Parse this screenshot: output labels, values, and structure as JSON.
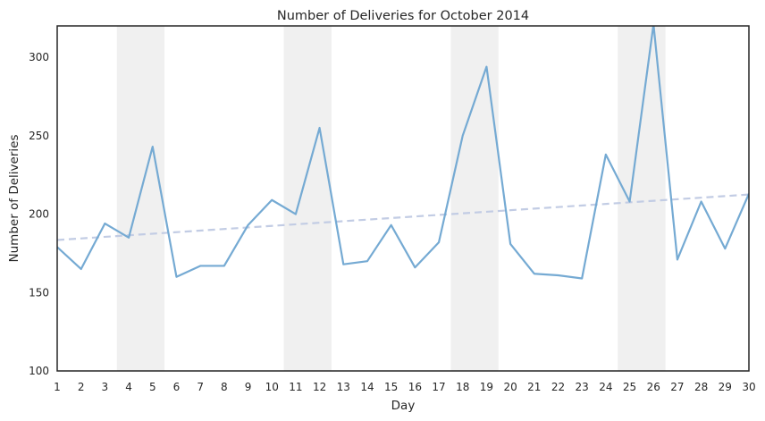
{
  "chart_data": {
    "type": "line",
    "title": "Number of Deliveries for October 2014",
    "xlabel": "Day",
    "ylabel": "Number of Deliveries",
    "xlim": [
      1,
      30
    ],
    "ylim": [
      100,
      320
    ],
    "x_ticks": [
      1,
      2,
      3,
      4,
      5,
      6,
      7,
      8,
      9,
      10,
      11,
      12,
      13,
      14,
      15,
      16,
      17,
      18,
      19,
      20,
      21,
      22,
      23,
      24,
      25,
      26,
      27,
      28,
      29,
      30
    ],
    "y_ticks": [
      100,
      150,
      200,
      250,
      300
    ],
    "grid": false,
    "weekend_shading": [
      [
        3.5,
        5.5
      ],
      [
        10.5,
        12.5
      ],
      [
        17.5,
        19.5
      ],
      [
        24.5,
        26.5
      ]
    ],
    "series": [
      {
        "style": "solid",
        "color": "#75aad3",
        "x": [
          1,
          2,
          3,
          4,
          5,
          6,
          7,
          8,
          9,
          10,
          11,
          12,
          13,
          14,
          15,
          16,
          17,
          18,
          19,
          20,
          21,
          22,
          23,
          24,
          25,
          26,
          27,
          28,
          29,
          30
        ],
        "values": [
          179,
          165,
          194,
          185,
          243,
          160,
          167,
          167,
          193,
          209,
          200,
          255,
          168,
          170,
          193,
          166,
          182,
          250,
          294,
          181,
          162,
          161,
          159,
          238,
          208,
          321,
          171,
          208,
          178,
          213
        ]
      },
      {
        "style": "dashed",
        "color": "#c2cce4",
        "x": [
          1,
          30
        ],
        "values": [
          183.5,
          212.5
        ]
      }
    ],
    "colors": {
      "shading": "#f0f0f0",
      "axes": "#262626"
    }
  }
}
